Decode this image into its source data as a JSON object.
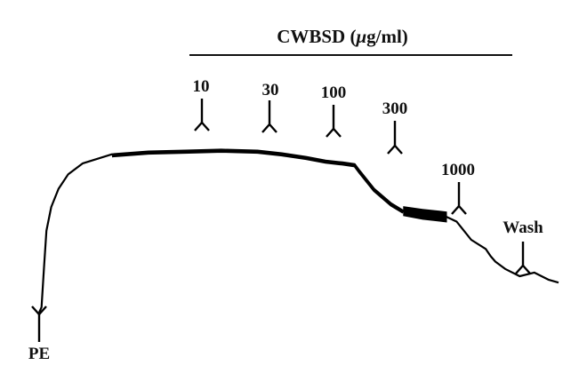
{
  "chart_data": {
    "type": "line",
    "title": "",
    "xlabel": "",
    "ylabel": "",
    "bracket_label_prefix": "CWBSD (",
    "bracket_label_mu": "μ",
    "bracket_label_suffix": "g/ml)",
    "annotations": [
      {
        "label": "PE",
        "direction": "up"
      },
      {
        "label": "10",
        "direction": "down"
      },
      {
        "label": "30",
        "direction": "down"
      },
      {
        "label": "100",
        "direction": "down"
      },
      {
        "label": "300",
        "direction": "down"
      },
      {
        "label": "1000",
        "direction": "down"
      },
      {
        "label": "Wash",
        "direction": "down"
      }
    ],
    "series": [
      {
        "x": [
          0,
          1,
          2,
          3,
          5,
          8,
          12,
          18,
          30,
          45,
          60,
          75,
          90,
          100,
          110,
          118,
          125,
          130,
          132,
          138,
          145,
          150,
          158,
          165,
          168,
          172,
          178,
          184,
          186,
          188,
          192,
          198,
          204,
          210,
          214
        ],
        "y": [
          0,
          0.03,
          0.25,
          0.45,
          0.58,
          0.68,
          0.76,
          0.82,
          0.87,
          0.885,
          0.89,
          0.895,
          0.89,
          0.875,
          0.855,
          0.835,
          0.825,
          0.815,
          0.78,
          0.68,
          0.6,
          0.56,
          0.54,
          0.53,
          0.525,
          0.5,
          0.4,
          0.35,
          0.31,
          0.28,
          0.24,
          0.2,
          0.22,
          0.18,
          0.165
        ]
      }
    ]
  }
}
